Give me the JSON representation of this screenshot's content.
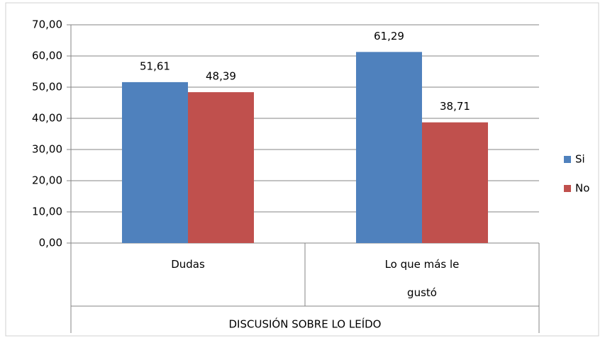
{
  "chart_data": {
    "type": "bar",
    "categories": [
      "Dudas",
      "Lo que más le gustó"
    ],
    "xlabel": "DISCUSIÓN SOBRE LO LEÍDO",
    "series": [
      {
        "name": "Si",
        "color": "#4f81bd",
        "values": [
          51.61,
          61.29
        ],
        "value_labels": [
          "51,61",
          "61,29"
        ]
      },
      {
        "name": "No",
        "color": "#c0504d",
        "values": [
          48.39,
          38.71
        ],
        "value_labels": [
          "48,39",
          "38,71"
        ]
      }
    ],
    "ylim": [
      0,
      70
    ],
    "yticks": [
      {
        "value": 0,
        "label": "0,00"
      },
      {
        "value": 10,
        "label": "10,00"
      },
      {
        "value": 20,
        "label": "20,00"
      },
      {
        "value": 30,
        "label": "30,00"
      },
      {
        "value": 40,
        "label": "40,00"
      },
      {
        "value": 50,
        "label": "50,00"
      },
      {
        "value": 60,
        "label": "60,00"
      },
      {
        "value": 70,
        "label": "70,00"
      }
    ],
    "grid": true,
    "legend": "right"
  }
}
